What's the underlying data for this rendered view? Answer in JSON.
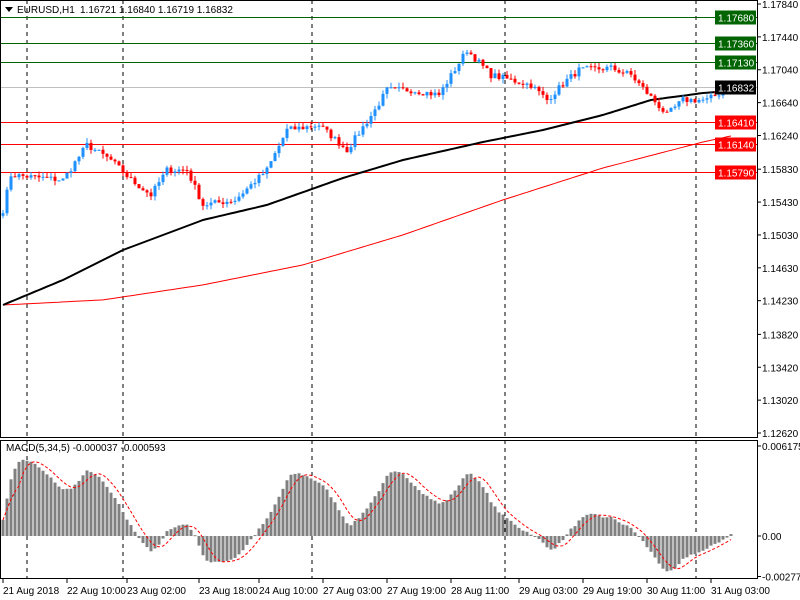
{
  "chart_data": {
    "type": "candlestick",
    "title": "EURUSD,H1",
    "ohlc_label": "1.16721 1.16840 1.16719 1.16832",
    "price_ticks": [
      "1.17840",
      "1.17440",
      "1.17040",
      "1.16640",
      "1.16240",
      "1.15830",
      "1.15430",
      "1.15030",
      "1.14630",
      "1.14230",
      "1.13820",
      "1.13420",
      "1.13020",
      "1.12620"
    ],
    "price_tick_values": [
      1.1784,
      1.1744,
      1.1704,
      1.1664,
      1.1624,
      1.1583,
      1.1543,
      1.1503,
      1.1463,
      1.1423,
      1.1382,
      1.1342,
      1.1302,
      1.1262
    ],
    "ylim": [
      1.1262,
      1.1784
    ],
    "time_labels": [
      "21 Aug 2018",
      "22 Aug 10:00",
      "23 Aug 02:00",
      "23 Aug 18:00",
      "24 Aug 10:00",
      "27 Aug 03:00",
      "27 Aug 19:00",
      "28 Aug 11:00",
      "29 Aug 03:00",
      "29 Aug 19:00",
      "30 Aug 11:00",
      "31 Aug 03:00"
    ],
    "time_label_bars": [
      0,
      16,
      31,
      49,
      64,
      80,
      96,
      112,
      129,
      145,
      161,
      177
    ],
    "levels": [
      {
        "price": 1.1768,
        "label": "1.17680",
        "color": "#006400"
      },
      {
        "price": 1.1736,
        "label": "1.17360",
        "color": "#006400"
      },
      {
        "price": 1.1713,
        "label": "1.17130",
        "color": "#006400"
      },
      {
        "price": 1.16832,
        "label": "1.16832",
        "color": "#000000",
        "line": "#c0c0c0"
      },
      {
        "price": 1.1641,
        "label": "1.16410",
        "color": "#ff0000"
      },
      {
        "price": 1.1614,
        "label": "1.16140",
        "color": "#ff0000"
      },
      {
        "price": 1.1579,
        "label": "1.15790",
        "color": "#ff0000"
      }
    ],
    "close_anchors": [
      [
        0,
        1.15334
      ],
      [
        2,
        1.1576
      ],
      [
        15,
        1.15699
      ],
      [
        21,
        1.16125
      ],
      [
        27,
        1.1594
      ],
      [
        32,
        1.15699
      ],
      [
        37,
        1.15516
      ],
      [
        41,
        1.1582
      ],
      [
        46,
        1.1582
      ],
      [
        50,
        1.15395
      ],
      [
        58,
        1.15456
      ],
      [
        66,
        1.1582
      ],
      [
        71,
        1.16307
      ],
      [
        79,
        1.16368
      ],
      [
        86,
        1.16064
      ],
      [
        93,
        1.1655
      ],
      [
        96,
        1.16794
      ],
      [
        102,
        1.16794
      ],
      [
        109,
        1.16733
      ],
      [
        116,
        1.1728
      ],
      [
        122,
        1.16976
      ],
      [
        132,
        1.16855
      ],
      [
        136,
        1.16672
      ],
      [
        141,
        1.16915
      ],
      [
        144,
        1.17037
      ],
      [
        152,
        1.17061
      ],
      [
        157,
        1.16976
      ],
      [
        166,
        1.1649
      ],
      [
        170,
        1.16672
      ],
      [
        176,
        1.16672
      ],
      [
        182,
        1.16832
      ]
    ],
    "ma_black": [
      [
        0,
        1.14178
      ],
      [
        15,
        1.14482
      ],
      [
        30,
        1.14847
      ],
      [
        50,
        1.15212
      ],
      [
        66,
        1.15395
      ],
      [
        85,
        1.15723
      ],
      [
        100,
        1.15942
      ],
      [
        120,
        1.16161
      ],
      [
        135,
        1.16307
      ],
      [
        150,
        1.1649
      ],
      [
        162,
        1.16672
      ],
      [
        175,
        1.16757
      ],
      [
        182,
        1.16782
      ]
    ],
    "ma_red": [
      [
        0,
        1.14178
      ],
      [
        25,
        1.14239
      ],
      [
        50,
        1.14422
      ],
      [
        75,
        1.14665
      ],
      [
        100,
        1.1503
      ],
      [
        125,
        1.15456
      ],
      [
        150,
        1.15845
      ],
      [
        175,
        1.16161
      ],
      [
        182,
        1.16234
      ]
    ],
    "macd": {
      "label": "MACD(5,34,5) -0.000037 -0.000593",
      "ticks": [
        "0.006175",
        "0.00",
        "-0.002778"
      ],
      "tick_values": [
        0.006175,
        0,
        -0.002778
      ]
    },
    "colors": {
      "bull": "#1e90ff",
      "bear": "#ff0000",
      "hist": "#808080",
      "signal": "#ff0000"
    }
  }
}
